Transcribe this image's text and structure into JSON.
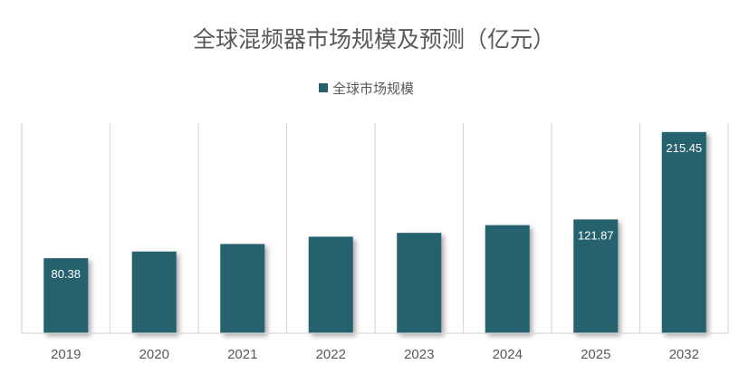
{
  "chart_data": {
    "type": "bar",
    "title": "全球混频器市场规模及预测（亿元）",
    "legend": {
      "position": "top",
      "entries": [
        "全球市场规模"
      ]
    },
    "series": [
      {
        "name": "全球市场规模",
        "values": [
          80.38,
          87.5,
          95.6,
          103.4,
          107.5,
          115.8,
          121.87,
          215.45
        ],
        "labels": [
          "80.38",
          null,
          null,
          null,
          null,
          null,
          "121.87",
          "215.45"
        ]
      }
    ],
    "categories": [
      "2019",
      "2020",
      "2021",
      "2022",
      "2023",
      "2024",
      "2025",
      "2032"
    ],
    "ylim": [
      0,
      225
    ],
    "grid": "vertical",
    "xlabel": "",
    "ylabel": ""
  },
  "colors": {
    "bar": "#26626e",
    "text": "#595959",
    "grid": "#d9d9d9"
  }
}
